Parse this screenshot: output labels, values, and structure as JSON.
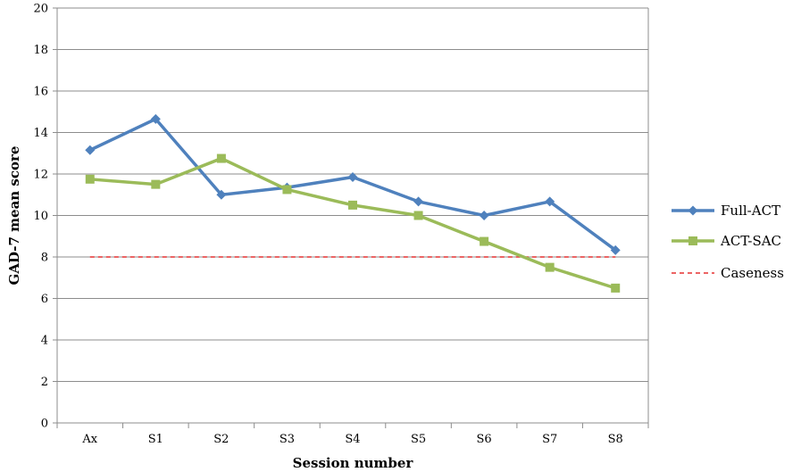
{
  "chart_data": {
    "type": "line",
    "title": "",
    "xlabel": "Session number",
    "ylabel": "GAD-7 mean score",
    "categories": [
      "Ax",
      "S1",
      "S2",
      "S3",
      "S4",
      "S5",
      "S6",
      "S7",
      "S8"
    ],
    "ylim": [
      0,
      20
    ],
    "yticks": [
      "0",
      "2",
      "4",
      "6",
      "8",
      "10",
      "12",
      "14",
      "16",
      "18",
      "20"
    ],
    "grid": true,
    "legend_position": "right",
    "series": [
      {
        "name": "Full-ACT",
        "color": "#4f81bd",
        "marker": "diamond",
        "values": [
          13.15,
          14.65,
          11.0,
          11.35,
          11.85,
          10.67,
          10.0,
          10.67,
          8.33
        ]
      },
      {
        "name": "ACT-SAC",
        "color": "#9bbb59",
        "marker": "square",
        "values": [
          11.75,
          11.5,
          12.75,
          11.25,
          10.5,
          10.0,
          8.75,
          7.5,
          6.5
        ]
      }
    ],
    "reference_line": {
      "name": "Caseness",
      "value": 8,
      "color": "#e53030",
      "style": "dashed"
    }
  }
}
